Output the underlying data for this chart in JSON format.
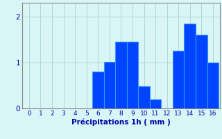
{
  "categories": [
    0,
    1,
    2,
    3,
    4,
    5,
    6,
    7,
    8,
    9,
    10,
    11,
    12,
    13,
    14,
    15,
    16
  ],
  "values": [
    0,
    0,
    0,
    0,
    0,
    0,
    0.8,
    1.02,
    1.45,
    1.45,
    0.48,
    0.2,
    0,
    1.25,
    1.85,
    1.6,
    1.0
  ],
  "bar_color": "#0044ff",
  "bar_edge_color": "#3399ff",
  "bg_color": "#d9f5f5",
  "xlabel": "Précipitations 1h ( mm )",
  "xlabel_color": "#0000aa",
  "tick_color": "#0000aa",
  "ylim": [
    0,
    2.3
  ],
  "yticks": [
    0,
    1,
    2
  ],
  "grid_color": "#b0d8d8",
  "bar_width": 1.0,
  "spine_color": "#888888"
}
